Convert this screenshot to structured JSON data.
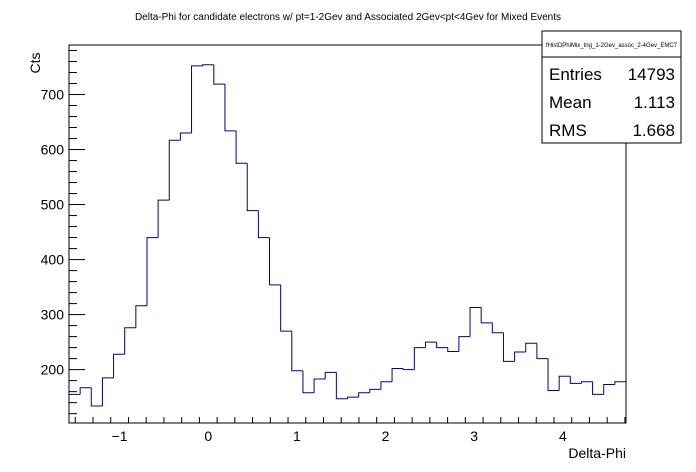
{
  "chart_data": {
    "type": "line",
    "title": "Delta-Phi for candidate electrons w/ pt=1-2Gev and Associated 2Gev<pt<4Gev for Mixed Events",
    "xlabel": "Delta-Phi",
    "ylabel": "Cts",
    "xlim": [
      -1.5708,
      4.7124
    ],
    "ylim": [
      103,
      790
    ],
    "x_ticks": [
      -1,
      0,
      1,
      2,
      3,
      4
    ],
    "y_ticks": [
      200,
      300,
      400,
      500,
      600,
      700
    ],
    "tick_labels": {
      "x": [
        "−1",
        "0",
        "1",
        "2",
        "3",
        "4"
      ],
      "y": [
        "200",
        "300",
        "400",
        "500",
        "600",
        "700"
      ]
    },
    "grid": false,
    "histogram_color": "#000099",
    "bins": {
      "count": 50,
      "low": -1.5708,
      "high": 4.7124,
      "values": [
        155,
        167,
        134,
        185,
        228,
        276,
        316,
        440,
        508,
        617,
        630,
        752,
        754,
        719,
        634,
        575,
        489,
        440,
        354,
        270,
        198,
        158,
        183,
        195,
        147,
        150,
        158,
        164,
        178,
        202,
        200,
        240,
        250,
        240,
        233,
        260,
        313,
        285,
        267,
        215,
        232,
        248,
        220,
        162,
        188,
        175,
        178,
        155,
        173,
        178
      ]
    }
  },
  "stats_box": {
    "name": "fHistDPhiMix_trig_1-2Gev_assoc_2-4Gev_EMC7",
    "entries_label": "Entries",
    "entries_value": "14793",
    "mean_label": "Mean",
    "mean_value": "1.113",
    "rms_label": "RMS",
    "rms_value": "1.668"
  }
}
